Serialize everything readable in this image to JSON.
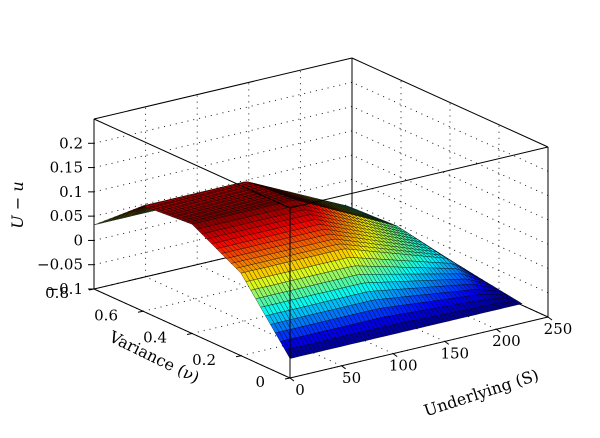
{
  "chart_data": {
    "type": "surface",
    "title": "",
    "xlabel": "Underlying (S)",
    "ylabel": "Variance (ν)",
    "zlabel": "U − u",
    "xlim": [
      0,
      250
    ],
    "ylim": [
      0,
      0.8
    ],
    "zlim": [
      -0.1,
      0.25
    ],
    "x_ticks": [
      "0",
      "50",
      "100",
      "150",
      "200",
      "250"
    ],
    "y_ticks": [
      "0",
      "0.2",
      "0.4",
      "0.6",
      "0.8"
    ],
    "z_ticks": [
      "−0.1",
      "−0.05",
      "0",
      "0.05",
      "0.1",
      "0.15",
      "0.2"
    ],
    "grid": true,
    "colormap": "jet",
    "x_breakpoints": [
      0,
      100,
      200,
      225
    ],
    "v_breakpoints": [
      0,
      0.2,
      0.4,
      0.6,
      0.8
    ],
    "surface_values": {
      "S=0": [
        -0.06,
        0.07,
        0.125,
        0.117,
        0.032
      ],
      "S=100": [
        -0.06,
        0.07,
        0.125,
        0.117,
        0.032
      ],
      "S=200": [
        -0.06,
        0.0,
        0.02,
        0.015,
        -0.01
      ],
      "S=225": [
        -0.06,
        -0.045,
        -0.04,
        -0.04,
        -0.05
      ]
    }
  }
}
